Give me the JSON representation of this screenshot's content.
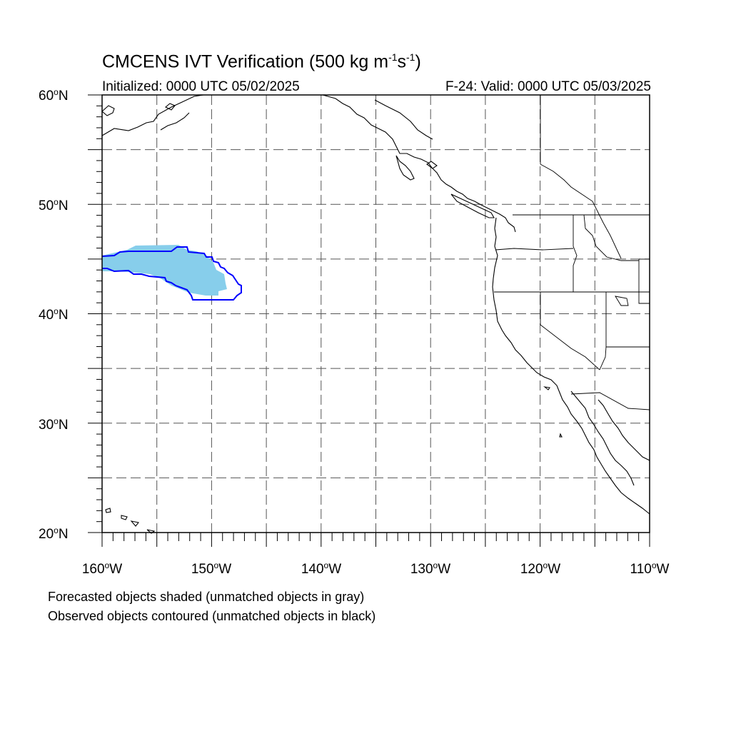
{
  "title": {
    "main": "CMCENS IVT Verification (500 kg m",
    "exp1": "-1",
    "mid": "s",
    "exp2": "-1",
    "close": ")"
  },
  "subtitle_left": "Initialized: 0000 UTC 05/02/2025",
  "subtitle_right": "F-24: Valid: 0000 UTC 05/03/2025",
  "map": {
    "lon_range": [
      -160,
      -110
    ],
    "lat_range": [
      20,
      60
    ],
    "grid": "dashed gray, every 5 degrees",
    "lat_ticks": [
      {
        "value": 60,
        "num": "60",
        "hem": "N"
      },
      {
        "value": 50,
        "num": "50",
        "hem": "N"
      },
      {
        "value": 40,
        "num": "40",
        "hem": "N"
      },
      {
        "value": 30,
        "num": "30",
        "hem": "N"
      },
      {
        "value": 20,
        "num": "20",
        "hem": "N"
      }
    ],
    "lon_ticks": [
      {
        "value": -160,
        "num": "160",
        "hem": "W"
      },
      {
        "value": -150,
        "num": "150",
        "hem": "W"
      },
      {
        "value": -140,
        "num": "140",
        "hem": "W"
      },
      {
        "value": -130,
        "num": "130",
        "hem": "W"
      },
      {
        "value": -120,
        "num": "120",
        "hem": "W"
      },
      {
        "value": -110,
        "num": "110",
        "hem": "W"
      }
    ],
    "colors": {
      "forecast_object_fill": "#87ceeb",
      "observed_object_contour": "#0000ff",
      "coastline": "#000000",
      "grid": "#555555"
    },
    "icon": "map-frame"
  },
  "notes": [
    "Forecasted objects shaded (unmatched objects in gray)",
    "Observed objects contoured (unmatched objects in black)"
  ]
}
